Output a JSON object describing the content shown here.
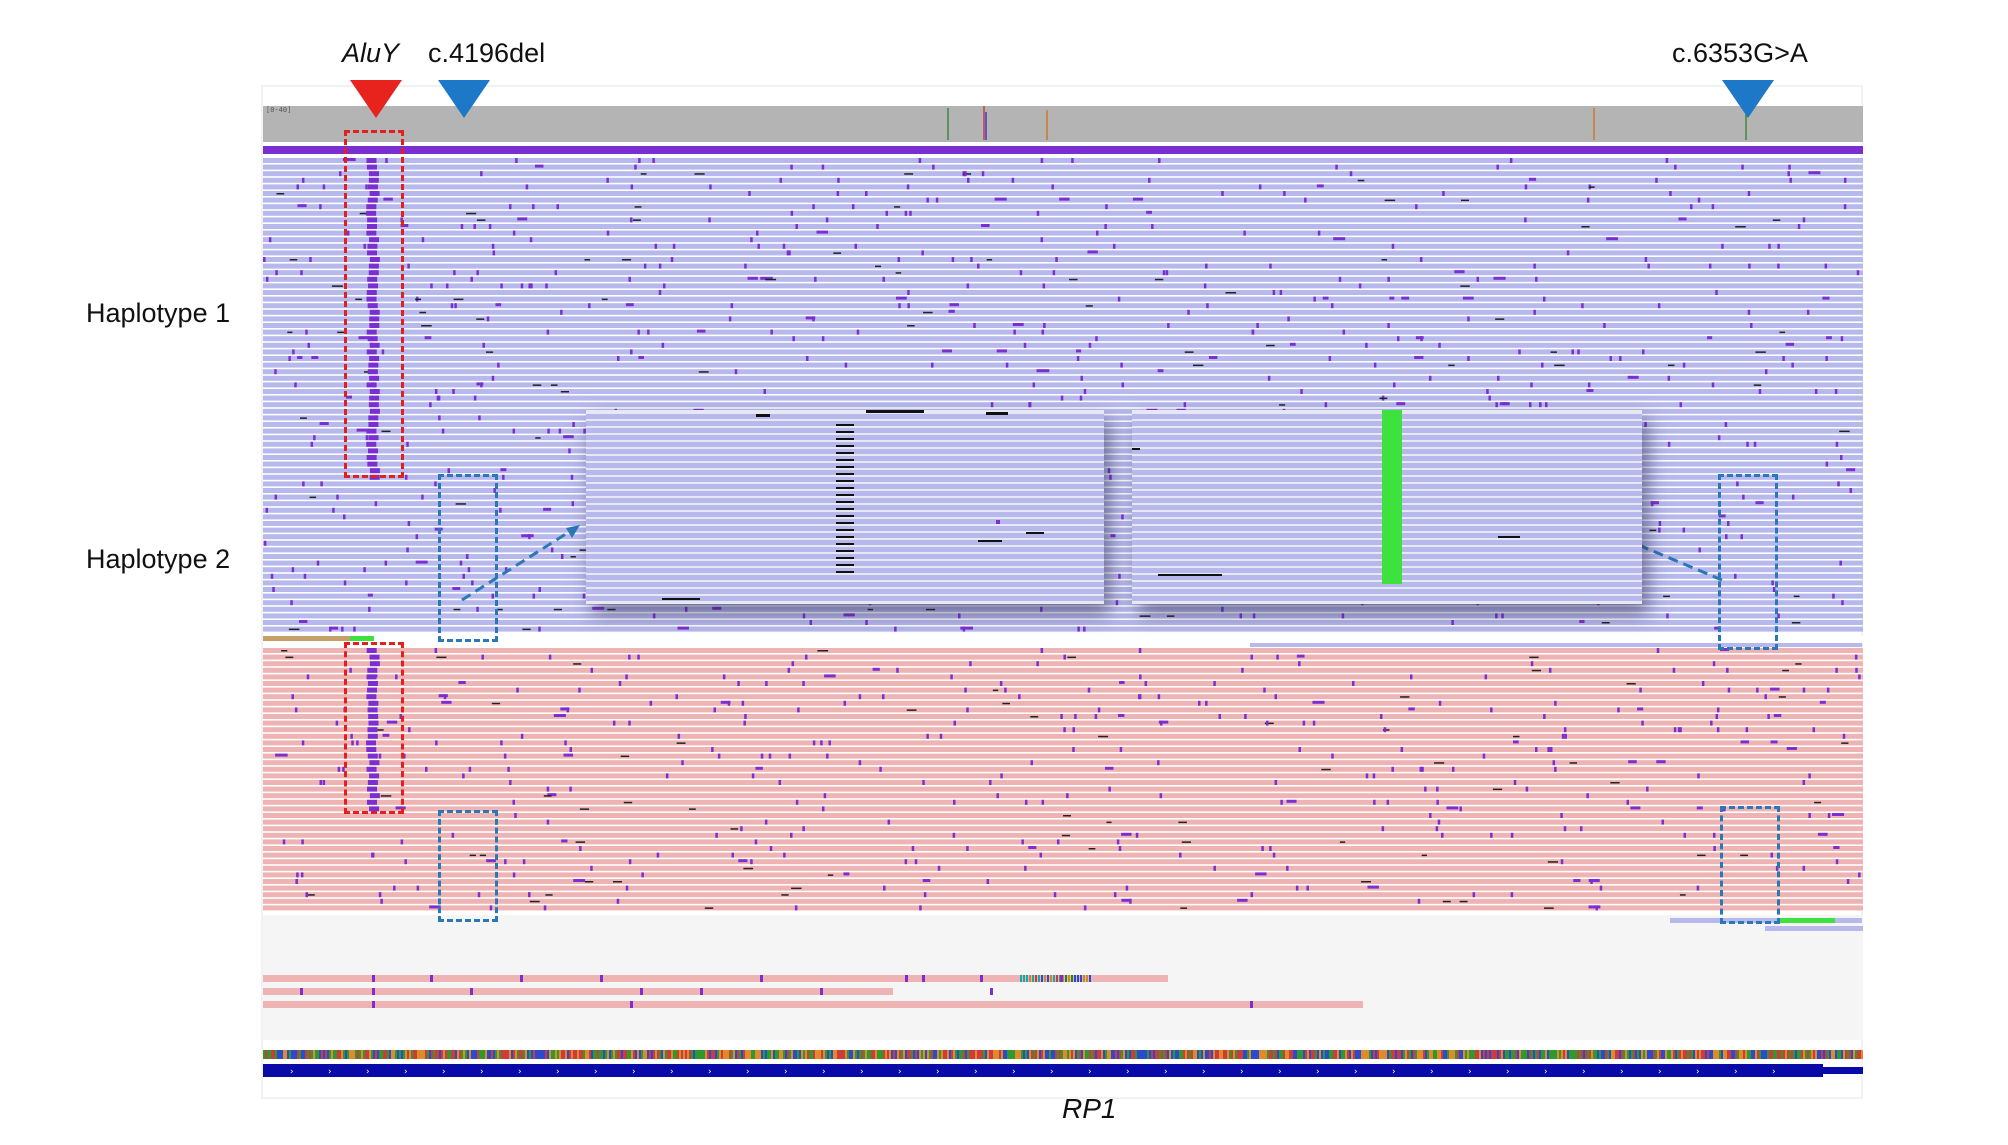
{
  "markers": {
    "aluy": {
      "label": "AluY",
      "color": "#e8221c"
    },
    "del": {
      "label": "c.4196del",
      "color": "#1e78c8"
    },
    "snv": {
      "label": "c.6353G>A",
      "color": "#1e78c8"
    }
  },
  "haplotypes": [
    {
      "label": "Haplotype 1",
      "color": "#b7b9ec"
    },
    {
      "label": "Haplotype 2",
      "color": "#eeb3b3"
    }
  ],
  "gene": {
    "label": "RP1",
    "color": "#0a0aa8"
  },
  "colors": {
    "insertion_purple": "#7b2fd2",
    "coverage_gray": "#b4b4b4",
    "snv_green": "#3ee23e",
    "deletion_black": "#111111",
    "highlight_red": "#e0211f",
    "highlight_blue": "#2a78b8"
  }
}
